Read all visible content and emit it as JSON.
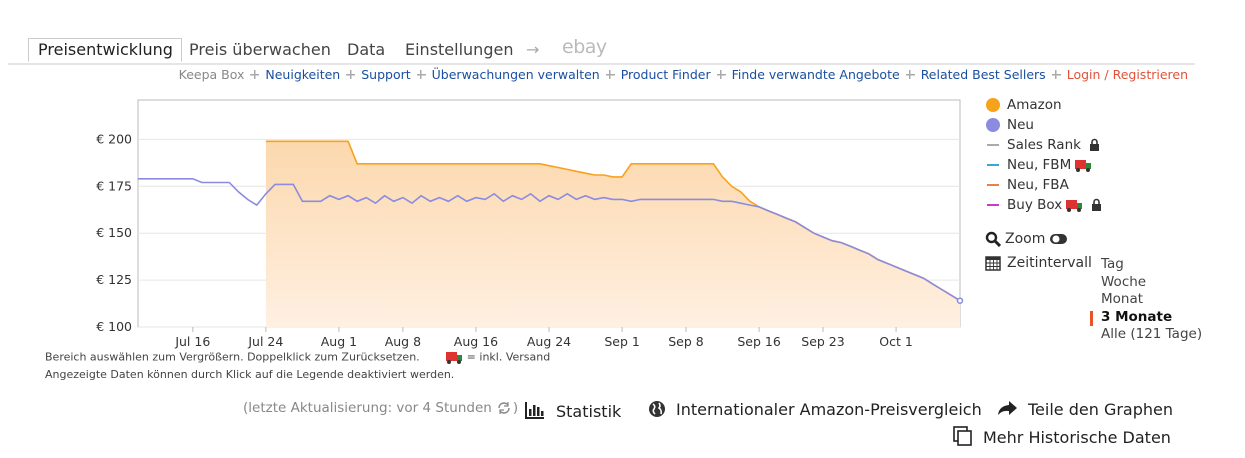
{
  "tabs": [
    "Preisentwicklung",
    "Preis überwachen",
    "Data",
    "Einstellungen"
  ],
  "tab_arrow": "→",
  "tab_ebay": "ebay",
  "nav": {
    "keepa_box": "Keepa Box",
    "links": [
      "Neuigkeiten",
      "Support",
      "Überwachungen verwalten",
      "Product Finder",
      "Finde verwandte Angebote",
      "Related Best Sellers"
    ],
    "login": "Login / Registrieren"
  },
  "chart_data": {
    "type": "line",
    "categories": [
      null,
      null,
      null,
      null,
      null,
      null,
      "Jul 16",
      null,
      null,
      null,
      null,
      null,
      null,
      null,
      "Jul 24",
      null,
      null,
      null,
      null,
      null,
      null,
      null,
      "Aug 1",
      null,
      null,
      null,
      null,
      null,
      null,
      "Aug 8",
      null,
      null,
      null,
      null,
      null,
      null,
      null,
      "Aug 16",
      null,
      null,
      null,
      null,
      null,
      null,
      null,
      "Aug 24",
      null,
      null,
      null,
      null,
      null,
      null,
      null,
      "Sep 1",
      null,
      null,
      null,
      null,
      null,
      null,
      "Sep 8",
      null,
      null,
      null,
      null,
      null,
      null,
      null,
      "Sep 16",
      null,
      null,
      null,
      null,
      null,
      null,
      "Sep 23",
      null,
      null,
      null,
      null,
      null,
      null,
      null,
      "Oct 1",
      null,
      null,
      null,
      null,
      null,
      null,
      null
    ],
    "series": [
      {
        "name": "Amazon",
        "color": "#f7a21b",
        "area": true,
        "values": [
          null,
          null,
          null,
          null,
          null,
          null,
          null,
          null,
          null,
          null,
          null,
          null,
          null,
          null,
          199,
          199,
          199,
          199,
          199,
          199,
          199,
          199,
          199,
          199,
          187,
          187,
          187,
          187,
          187,
          187,
          187,
          187,
          187,
          187,
          187,
          187,
          187,
          187,
          187,
          187,
          187,
          187,
          187,
          187,
          187,
          186,
          185,
          184,
          183,
          182,
          181,
          181,
          180,
          180,
          187,
          187,
          187,
          187,
          187,
          187,
          187,
          187,
          187,
          187,
          180,
          175,
          172,
          167,
          164,
          162,
          160,
          158,
          156,
          153,
          150,
          148,
          146,
          145,
          143,
          141,
          139,
          136,
          134,
          132,
          130,
          128,
          126,
          123,
          120,
          117,
          114
        ]
      },
      {
        "name": "Neu",
        "color": "#8b8be0",
        "area": false,
        "values": [
          179,
          179,
          179,
          179,
          179,
          179,
          179,
          177,
          177,
          177,
          177,
          172,
          168,
          165,
          171,
          176,
          176,
          176,
          167,
          167,
          167,
          170,
          168,
          170,
          167,
          169,
          166,
          170,
          167,
          169,
          166,
          170,
          167,
          169,
          167,
          170,
          167,
          169,
          168,
          171,
          167,
          170,
          168,
          171,
          167,
          170,
          168,
          171,
          168,
          170,
          168,
          169,
          168,
          168,
          167,
          168,
          168,
          168,
          168,
          168,
          168,
          168,
          168,
          168,
          167,
          167,
          166,
          165,
          164,
          162,
          160,
          158,
          156,
          153,
          150,
          148,
          146,
          145,
          143,
          141,
          139,
          136,
          134,
          132,
          130,
          128,
          126,
          123,
          120,
          117,
          114
        ]
      }
    ],
    "extra_legend": [
      {
        "name": "Sales Rank",
        "color": "#aaaaaa",
        "lock": true
      },
      {
        "name": "Neu, FBM",
        "color": "#3aa7d0",
        "truck": true
      },
      {
        "name": "Neu, FBA",
        "color": "#e8804a"
      },
      {
        "name": "Buy Box",
        "color": "#c93bc9",
        "truck": true,
        "lock": true
      }
    ],
    "ylim": [
      100,
      221
    ],
    "yticks": [
      {
        "value": 100,
        "label": "€ 100"
      },
      {
        "value": 125,
        "label": "€ 125"
      },
      {
        "value": 150,
        "label": "€ 150"
      },
      {
        "value": 175,
        "label": "€ 175"
      },
      {
        "value": 200,
        "label": "€ 200"
      }
    ],
    "grid": true
  },
  "zoom": "Zoom",
  "interval_label": "Zeitintervall",
  "intervals": [
    "Tag",
    "Woche",
    "Monat",
    "3 Monate",
    "Alle (121 Tage)"
  ],
  "selected_interval": 3,
  "notes": [
    "Bereich auswählen zum Vergrößern. Doppelklick zum Zurücksetzen.",
    "= inkl. Versand",
    "Angezeigte Daten können durch Klick auf die Legende deaktiviert werden."
  ],
  "update": {
    "prefix": "(letzte Aktualisierung: vor 4 Stunden",
    "suffix": ")"
  },
  "actions": [
    "Statistik",
    "Internationaler Amazon-Preisvergleich",
    "Teile den Graphen",
    "Mehr Historische Daten"
  ]
}
